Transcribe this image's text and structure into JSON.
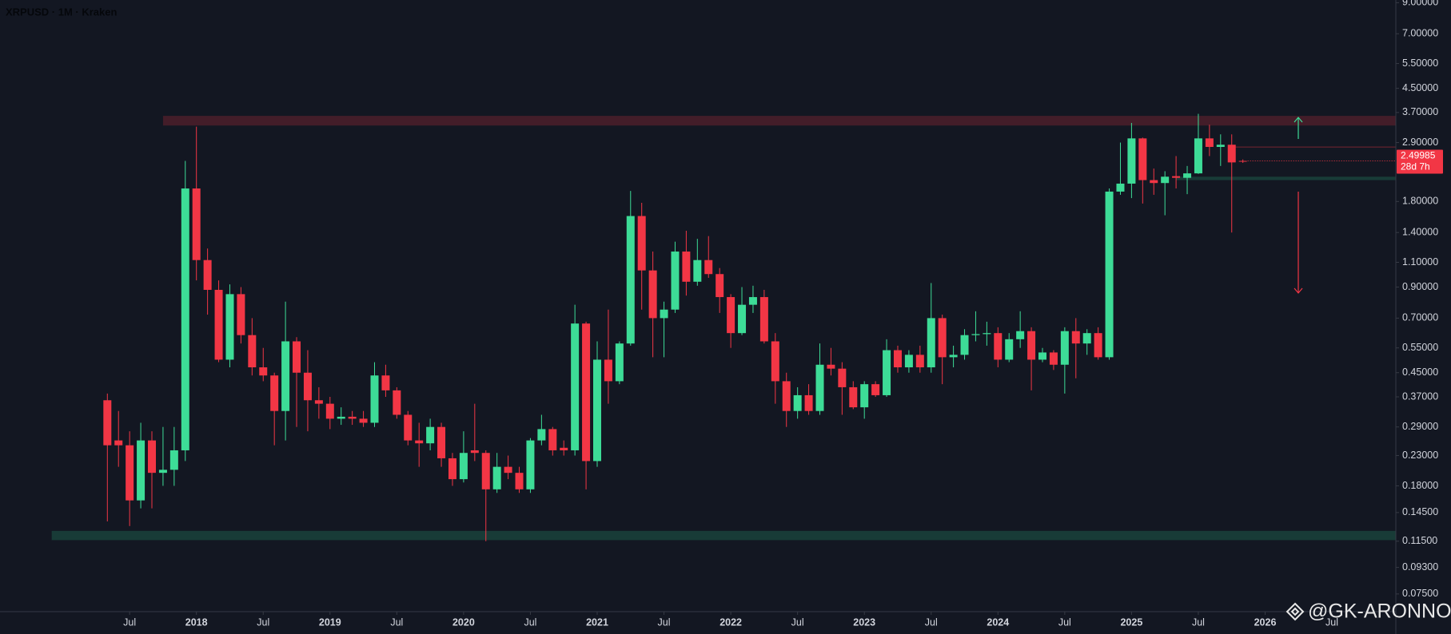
{
  "chart_data": {
    "type": "candlestick",
    "title": "XRPUSD · 1M · Kraken",
    "watermark": "@GK-ARONNO",
    "countdown": "28d 7h",
    "log_scale": true,
    "up_color": "#3ddc97",
    "down_color": "#f23645",
    "ylim": [
      0.065,
      9.2
    ],
    "yticks": [
      {
        "value": 9,
        "label": "9.00000"
      },
      {
        "value": 7,
        "label": "7.00000"
      },
      {
        "value": 5.5,
        "label": "5.50000"
      },
      {
        "value": 4.5,
        "label": "4.50000"
      },
      {
        "value": 3.7,
        "label": "3.70000"
      },
      {
        "value": 2.9,
        "label": "2.90000"
      },
      {
        "value": 1.8,
        "label": "1.80000"
      },
      {
        "value": 1.4,
        "label": "1.40000"
      },
      {
        "value": 1.1,
        "label": "1.10000"
      },
      {
        "value": 0.9,
        "label": "0.90000"
      },
      {
        "value": 0.7,
        "label": "0.70000"
      },
      {
        "value": 0.55,
        "label": "0.55000"
      },
      {
        "value": 0.45,
        "label": "0.45000"
      },
      {
        "value": 0.37,
        "label": "0.37000"
      },
      {
        "value": 0.29,
        "label": "0.29000"
      },
      {
        "value": 0.23,
        "label": "0.23000"
      },
      {
        "value": 0.18,
        "label": "0.18000"
      },
      {
        "value": 0.145,
        "label": "0.14500"
      },
      {
        "value": 0.115,
        "label": "0.11500"
      },
      {
        "value": 0.093,
        "label": "0.09300"
      },
      {
        "value": 0.075,
        "label": "0.07500"
      }
    ],
    "xticks": [
      {
        "value": "2017-07",
        "label": "Jul"
      },
      {
        "value": "2018-01",
        "label": "2018"
      },
      {
        "value": "2018-07",
        "label": "Jul"
      },
      {
        "value": "2019-01",
        "label": "2019"
      },
      {
        "value": "2019-07",
        "label": "Jul"
      },
      {
        "value": "2020-01",
        "label": "2020"
      },
      {
        "value": "2020-07",
        "label": "Jul"
      },
      {
        "value": "2021-01",
        "label": "2021"
      },
      {
        "value": "2021-07",
        "label": "Jul"
      },
      {
        "value": "2022-01",
        "label": "2022"
      },
      {
        "value": "2022-07",
        "label": "Jul"
      },
      {
        "value": "2023-01",
        "label": "2023"
      },
      {
        "value": "2023-07",
        "label": "Jul"
      },
      {
        "value": "2024-01",
        "label": "2024"
      },
      {
        "value": "2024-07",
        "label": "Jul"
      },
      {
        "value": "2025-01",
        "label": "2025"
      },
      {
        "value": "2025-07",
        "label": "Jul"
      },
      {
        "value": "2026-01",
        "label": "2026"
      },
      {
        "value": "2026-07",
        "label": "Jul"
      }
    ],
    "zones": [
      {
        "from": "2017-10",
        "low": 3.33,
        "high": 3.6,
        "color": "rgba(242,54,69,0.22)"
      },
      {
        "from": "2016-12",
        "low": 0.116,
        "high": 0.125,
        "color": "rgba(38,166,120,0.25)"
      },
      {
        "from": "2025-05",
        "low": 2.14,
        "high": 2.2,
        "color": "rgba(38,166,120,0.25)"
      },
      {
        "from": "2025-10",
        "low": 2.79,
        "high": 2.81,
        "color": "rgba(242,54,69,0.3)"
      }
    ],
    "x": [
      "2017-05",
      "2017-06",
      "2017-07",
      "2017-08",
      "2017-09",
      "2017-10",
      "2017-11",
      "2017-12",
      "2018-01",
      "2018-02",
      "2018-03",
      "2018-04",
      "2018-05",
      "2018-06",
      "2018-07",
      "2018-08",
      "2018-09",
      "2018-10",
      "2018-11",
      "2018-12",
      "2019-01",
      "2019-02",
      "2019-03",
      "2019-04",
      "2019-05",
      "2019-06",
      "2019-07",
      "2019-08",
      "2019-09",
      "2019-10",
      "2019-11",
      "2019-12",
      "2020-01",
      "2020-02",
      "2020-03",
      "2020-04",
      "2020-05",
      "2020-06",
      "2020-07",
      "2020-08",
      "2020-09",
      "2020-10",
      "2020-11",
      "2020-12",
      "2021-01",
      "2021-02",
      "2021-03",
      "2021-04",
      "2021-05",
      "2021-06",
      "2021-07",
      "2021-08",
      "2021-09",
      "2021-10",
      "2021-11",
      "2021-12",
      "2022-01",
      "2022-02",
      "2022-03",
      "2022-04",
      "2022-05",
      "2022-06",
      "2022-07",
      "2022-08",
      "2022-09",
      "2022-10",
      "2022-11",
      "2022-12",
      "2023-01",
      "2023-02",
      "2023-03",
      "2023-04",
      "2023-05",
      "2023-06",
      "2023-07",
      "2023-08",
      "2023-09",
      "2023-10",
      "2023-11",
      "2023-12",
      "2024-01",
      "2024-02",
      "2024-03",
      "2024-04",
      "2024-05",
      "2024-06",
      "2024-07",
      "2024-08",
      "2024-09",
      "2024-10",
      "2024-11",
      "2024-12",
      "2025-01",
      "2025-02",
      "2025-03",
      "2025-04",
      "2025-05",
      "2025-06",
      "2025-07",
      "2025-08",
      "2025-09",
      "2025-10",
      "2025-11"
    ],
    "open": [
      0.36,
      0.26,
      0.25,
      0.16,
      0.26,
      0.2,
      0.205,
      0.24,
      2.0,
      1.12,
      0.88,
      0.5,
      0.85,
      0.61,
      0.47,
      0.44,
      0.33,
      0.58,
      0.45,
      0.36,
      0.35,
      0.31,
      0.315,
      0.31,
      0.3,
      0.44,
      0.39,
      0.32,
      0.26,
      0.254,
      0.29,
      0.225,
      0.19,
      0.24,
      0.235,
      0.175,
      0.21,
      0.2,
      0.175,
      0.26,
      0.285,
      0.245,
      0.24,
      0.67,
      0.22,
      0.5,
      0.42,
      0.57,
      1.6,
      1.03,
      0.7,
      0.75,
      1.2,
      0.94,
      1.12,
      1.0,
      0.83,
      0.62,
      0.78,
      0.83,
      0.58,
      0.42,
      0.33,
      0.375,
      0.33,
      0.48,
      0.465,
      0.4,
      0.34,
      0.41,
      0.375,
      0.54,
      0.47,
      0.52,
      0.47,
      0.7,
      0.51,
      0.52,
      0.61,
      0.615,
      0.62,
      0.5,
      0.59,
      0.63,
      0.5,
      0.53,
      0.48,
      0.63,
      0.57,
      0.62,
      0.51,
      1.95,
      2.08,
      3.0,
      2.14,
      2.09,
      2.21,
      2.18,
      2.26,
      3.0,
      2.8,
      2.85,
      2.5
    ],
    "high": [
      0.38,
      0.33,
      0.28,
      0.3,
      0.28,
      0.29,
      0.29,
      2.5,
      3.3,
      1.23,
      0.95,
      0.92,
      0.9,
      0.7,
      0.55,
      0.45,
      0.8,
      0.6,
      0.54,
      0.4,
      0.37,
      0.34,
      0.33,
      0.33,
      0.49,
      0.48,
      0.4,
      0.33,
      0.3,
      0.31,
      0.3,
      0.235,
      0.28,
      0.35,
      0.24,
      0.235,
      0.23,
      0.21,
      0.265,
      0.32,
      0.29,
      0.26,
      0.78,
      0.68,
      0.58,
      0.75,
      0.58,
      1.96,
      1.78,
      1.2,
      0.8,
      1.3,
      1.42,
      1.33,
      1.36,
      1.05,
      0.85,
      0.9,
      0.91,
      0.88,
      0.62,
      0.45,
      0.4,
      0.41,
      0.57,
      0.55,
      0.49,
      0.42,
      0.42,
      0.42,
      0.59,
      0.56,
      0.54,
      0.56,
      0.93,
      0.72,
      0.56,
      0.64,
      0.74,
      0.68,
      0.65,
      0.62,
      0.74,
      0.65,
      0.55,
      0.54,
      0.65,
      0.7,
      0.64,
      0.65,
      2.0,
      2.9,
      3.4,
      3.02,
      2.35,
      2.3,
      2.6,
      2.4,
      3.66,
      3.35,
      3.1,
      3.1,
      2.53
    ],
    "low": [
      0.135,
      0.21,
      0.13,
      0.15,
      0.15,
      0.18,
      0.18,
      0.22,
      0.95,
      0.72,
      0.49,
      0.47,
      0.57,
      0.44,
      0.42,
      0.25,
      0.26,
      0.29,
      0.28,
      0.31,
      0.285,
      0.295,
      0.295,
      0.29,
      0.29,
      0.37,
      0.31,
      0.25,
      0.21,
      0.24,
      0.21,
      0.18,
      0.185,
      0.22,
      0.115,
      0.17,
      0.19,
      0.17,
      0.17,
      0.25,
      0.23,
      0.23,
      0.23,
      0.175,
      0.21,
      0.35,
      0.41,
      0.56,
      0.75,
      0.51,
      0.51,
      0.73,
      0.84,
      0.91,
      0.97,
      0.73,
      0.55,
      0.61,
      0.73,
      0.57,
      0.35,
      0.29,
      0.31,
      0.32,
      0.32,
      0.44,
      0.32,
      0.335,
      0.31,
      0.37,
      0.37,
      0.45,
      0.45,
      0.45,
      0.45,
      0.41,
      0.47,
      0.5,
      0.58,
      0.56,
      0.47,
      0.49,
      0.55,
      0.39,
      0.49,
      0.46,
      0.38,
      0.43,
      0.52,
      0.5,
      0.5,
      1.9,
      1.85,
      1.77,
      1.9,
      1.61,
      2.0,
      1.91,
      2.25,
      2.6,
      2.4,
      1.4,
      2.46
    ],
    "close": [
      0.25,
      0.25,
      0.16,
      0.26,
      0.2,
      0.205,
      0.24,
      2.0,
      1.12,
      0.88,
      0.5,
      0.85,
      0.61,
      0.47,
      0.44,
      0.33,
      0.58,
      0.45,
      0.36,
      0.35,
      0.31,
      0.315,
      0.31,
      0.3,
      0.44,
      0.39,
      0.32,
      0.26,
      0.254,
      0.29,
      0.225,
      0.19,
      0.235,
      0.235,
      0.175,
      0.21,
      0.2,
      0.175,
      0.26,
      0.285,
      0.24,
      0.24,
      0.67,
      0.22,
      0.5,
      0.42,
      0.57,
      1.6,
      1.03,
      0.7,
      0.75,
      1.2,
      0.94,
      1.12,
      1.0,
      0.83,
      0.62,
      0.78,
      0.83,
      0.58,
      0.42,
      0.33,
      0.375,
      0.33,
      0.48,
      0.465,
      0.4,
      0.34,
      0.41,
      0.375,
      0.54,
      0.47,
      0.52,
      0.47,
      0.7,
      0.51,
      0.52,
      0.61,
      0.615,
      0.62,
      0.5,
      0.59,
      0.63,
      0.5,
      0.53,
      0.48,
      0.63,
      0.57,
      0.62,
      0.51,
      1.95,
      2.08,
      3.0,
      2.14,
      2.09,
      2.2,
      2.18,
      2.26,
      3.0,
      2.8,
      2.85,
      2.47,
      2.49985
    ]
  }
}
